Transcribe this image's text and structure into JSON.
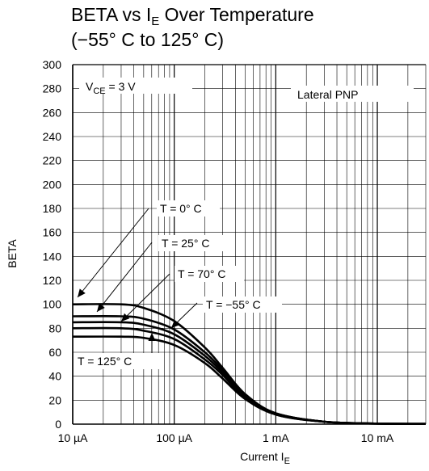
{
  "chart_data": {
    "type": "line",
    "title": {
      "line1": {
        "main": "BETA vs I",
        "sub": "E",
        "rest": " Over Temperature"
      },
      "line2": "(−55° C to 125° C)"
    },
    "xlabel": {
      "main": "Current I",
      "sub": "E"
    },
    "ylabel": "BETA",
    "x_scale": "log",
    "xlim": [
      1e-05,
      0.03
    ],
    "ylim": [
      0,
      300
    ],
    "grid": true,
    "x_ticks": [
      {
        "value": 1e-05,
        "label": "10 µA"
      },
      {
        "value": 0.0001,
        "label": "100 µA"
      },
      {
        "value": 0.001,
        "label": "1 mA"
      },
      {
        "value": 0.01,
        "label": "10 mA"
      }
    ],
    "y_ticks": [
      0,
      20,
      40,
      60,
      80,
      100,
      120,
      140,
      160,
      180,
      200,
      220,
      240,
      260,
      280,
      300
    ],
    "series": [
      {
        "name": "T = 0° C",
        "x": [
          1e-05,
          3e-05,
          5e-05,
          0.0001,
          0.0002,
          0.0003,
          0.0005,
          0.001,
          0.003,
          0.01,
          0.03
        ],
        "y": [
          100,
          100,
          97,
          86,
          64,
          47,
          25,
          9,
          2,
          0.5,
          0.2
        ]
      },
      {
        "name": "T = 25° C",
        "x": [
          1e-05,
          3e-05,
          5e-05,
          0.0001,
          0.0002,
          0.0003,
          0.0005,
          0.001,
          0.003,
          0.01,
          0.03
        ],
        "y": [
          90,
          90,
          88,
          79,
          60,
          45,
          24,
          9,
          2,
          0.5,
          0.2
        ]
      },
      {
        "name": "T = 70° C",
        "x": [
          1e-05,
          3e-05,
          5e-05,
          0.0001,
          0.0002,
          0.0003,
          0.0005,
          0.001,
          0.003,
          0.01,
          0.03
        ],
        "y": [
          85,
          85,
          83,
          75,
          57,
          43,
          23,
          9,
          2,
          0.5,
          0.2
        ]
      },
      {
        "name": "T = −55° C",
        "x": [
          1e-05,
          3e-05,
          5e-05,
          0.0001,
          0.0002,
          0.0003,
          0.0005,
          0.001,
          0.003,
          0.01,
          0.03
        ],
        "y": [
          80,
          80,
          78,
          71,
          54,
          41,
          22,
          8,
          2,
          0.5,
          0.2
        ]
      },
      {
        "name": "T = 125° C",
        "x": [
          1e-05,
          3e-05,
          5e-05,
          0.0001,
          0.0002,
          0.0003,
          0.0005,
          0.001,
          0.003,
          0.01,
          0.03
        ],
        "y": [
          73,
          73,
          72,
          66,
          51,
          38,
          21,
          8,
          2,
          0.5,
          0.2
        ]
      }
    ],
    "annotations": {
      "vce": {
        "main": "V",
        "sub": "CE",
        "rest": " = 3 V"
      },
      "device": "Lateral PNP"
    }
  }
}
